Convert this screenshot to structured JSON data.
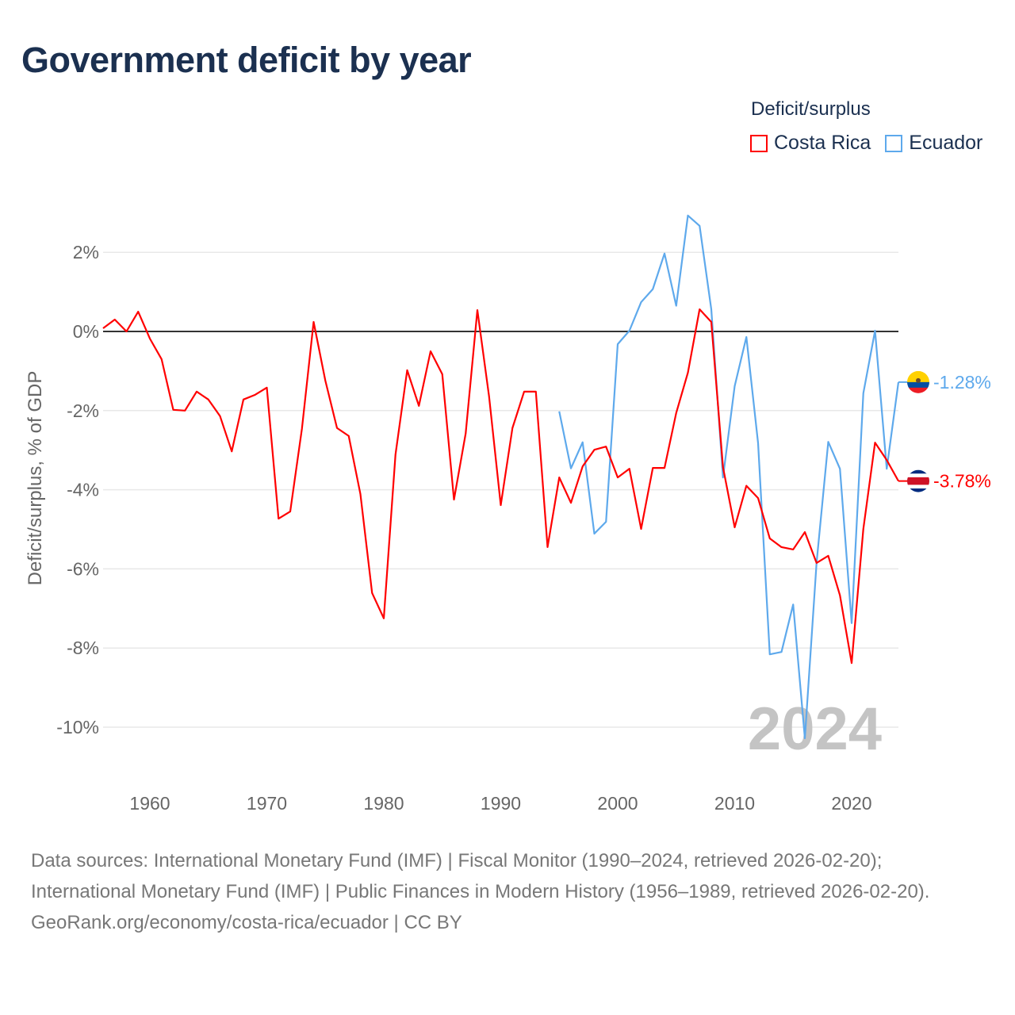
{
  "title": "Government deficit by year",
  "legend": {
    "title": "Deficit/surplus",
    "items": [
      {
        "label": "Costa Rica",
        "color": "#ff0000"
      },
      {
        "label": "Ecuador",
        "color": "#5ea9ec"
      }
    ]
  },
  "footer": {
    "sources": "Data sources: International Monetary Fund (IMF) | Fiscal Monitor (1990–2024, retrieved 2026-02-20); International Monetary Fund (IMF) | Public Finances in Modern History (1956–1989, retrieved 2026-02-20).",
    "credit": "GeoRank.org/economy/costa-rica/ecuador | CC BY"
  },
  "chart_data": {
    "type": "line",
    "title": "Government deficit by year",
    "xlabel": "",
    "ylabel": "Deficit/surplus, % of GDP",
    "xlim": [
      1956,
      2024
    ],
    "ylim": [
      -11.2,
      3.4
    ],
    "xticks": [
      1960,
      1970,
      1980,
      1990,
      2000,
      2010,
      2020
    ],
    "yticks": [
      2,
      0,
      -2,
      -4,
      -6,
      -8,
      -10
    ],
    "ytick_labels": [
      "2%",
      "0%",
      "-2%",
      "-4%",
      "-6%",
      "-8%",
      "-10%"
    ],
    "year_watermark": "2024",
    "grid": true,
    "legend_position": "top-right",
    "series": [
      {
        "name": "Costa Rica",
        "color": "#ff0000",
        "end_label": "-3.78%",
        "start_year": 1956,
        "values": [
          0.08,
          0.3,
          0,
          0.5,
          -0.18,
          -0.7,
          -1.98,
          -2.0,
          -1.52,
          -1.72,
          -2.14,
          -3.03,
          -1.72,
          -1.6,
          -1.42,
          -4.73,
          -4.55,
          -2.46,
          0.24,
          -1.24,
          -2.44,
          -2.64,
          -4.11,
          -6.61,
          -7.25,
          -3.11,
          -0.98,
          -1.88,
          -0.5,
          -1.08,
          -4.25,
          -2.58,
          0.54,
          -1.64,
          -4.39,
          -2.44,
          -1.52,
          -1.52,
          -5.45,
          -3.69,
          -4.33,
          -3.41,
          -2.99,
          -2.91,
          -3.69,
          -3.47,
          -4.99,
          -3.45,
          -3.45,
          -2.06,
          -1.04,
          0.56,
          0.24,
          -3.43,
          -4.95,
          -3.9,
          -4.21,
          -5.23,
          -5.45,
          -5.51,
          -5.07,
          -5.85,
          -5.67,
          -6.67,
          -8.38,
          -4.99,
          -2.81,
          -3.25,
          -3.78
        ]
      },
      {
        "name": "Ecuador",
        "color": "#5ea9ec",
        "end_label": "-1.28%",
        "start_year": 1995,
        "values": [
          -2.02,
          -3.46,
          -2.8,
          -5.11,
          -4.81,
          -0.32,
          0.02,
          0.74,
          1.07,
          1.97,
          0.65,
          2.93,
          2.67,
          0.56,
          -3.69,
          -1.38,
          -0.14,
          -2.82,
          -8.16,
          -8.1,
          -6.9,
          -10.28,
          -5.85,
          -2.79,
          -3.47,
          -7.37,
          -1.56,
          0.02,
          -3.47,
          -1.28
        ]
      }
    ]
  }
}
